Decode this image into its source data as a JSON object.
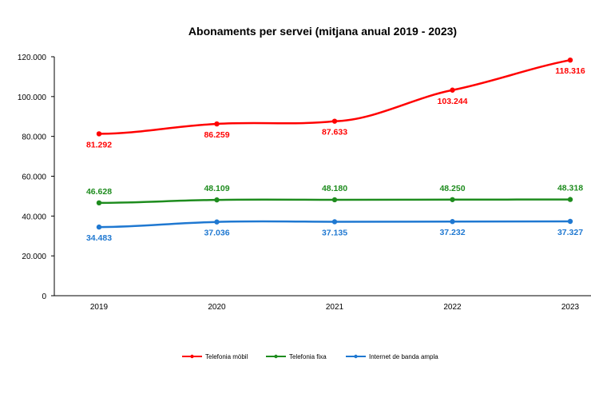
{
  "chart_data": {
    "type": "line",
    "title": "Abonaments per servei (mitjana anual 2019 - 2023)",
    "categories": [
      "2019",
      "2020",
      "2021",
      "2022",
      "2023"
    ],
    "ylim": [
      0,
      120000
    ],
    "yticks": [
      "0",
      "20.000",
      "40.000",
      "60.000",
      "80.000",
      "100.000",
      "120.000"
    ],
    "grid": false,
    "legend_position": "bottom",
    "series": [
      {
        "name": "Telefonia mòbil",
        "color": "#ff0000",
        "values": [
          81292,
          86259,
          87633,
          103244,
          118316
        ],
        "labels": [
          "81.292",
          "86.259",
          "87.633",
          "103.244",
          "118.316"
        ]
      },
      {
        "name": "Telefonia fixa",
        "color": "#1e8c1e",
        "values": [
          46628,
          48109,
          48180,
          48250,
          48318
        ],
        "labels": [
          "46.628",
          "48.109",
          "48.180",
          "48.250",
          "48.318"
        ]
      },
      {
        "name": "Internet de banda ampla",
        "color": "#1f78d1",
        "values": [
          34483,
          37036,
          37135,
          37232,
          37327
        ],
        "labels": [
          "34.483",
          "37.036",
          "37.135",
          "37.232",
          "37.327"
        ]
      }
    ]
  }
}
